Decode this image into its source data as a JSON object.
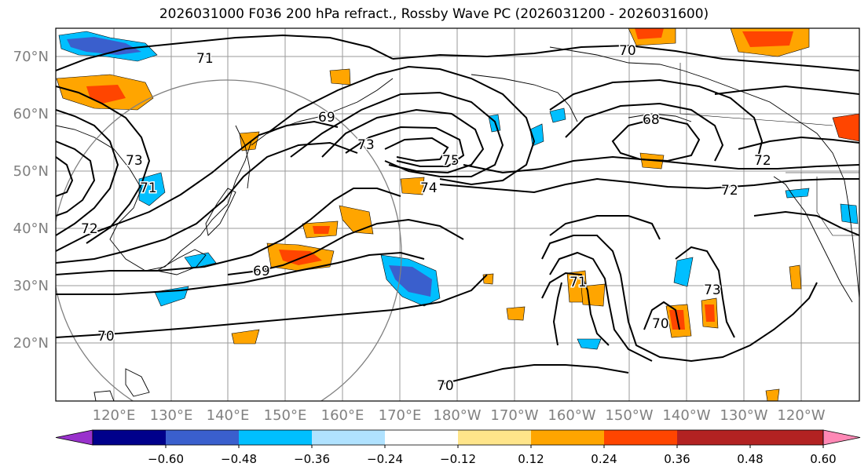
{
  "title": "2026031000 F036 200 hPa refract., Rossby Wave PC (2026031200 - 2026031600)",
  "map": {
    "lat_labels": [
      "70°N",
      "60°N",
      "50°N",
      "40°N",
      "30°N",
      "20°N"
    ],
    "lon_labels": [
      "120°E",
      "130°E",
      "140°E",
      "150°E",
      "160°E",
      "170°E",
      "180°W",
      "170°W",
      "160°W",
      "150°W",
      "140°W",
      "130°W",
      "120°W"
    ],
    "contour_labels": [
      "71",
      "69",
      "73",
      "75",
      "74",
      "70",
      "68",
      "72",
      "72",
      "69",
      "70",
      "71",
      "73",
      "70",
      "70",
      "71",
      "73",
      "72"
    ],
    "label_color": "#808080"
  },
  "colorbar": {
    "ticks": [
      "−0.60",
      "−0.48",
      "−0.36",
      "−0.24",
      "−0.12",
      "0.12",
      "0.24",
      "0.36",
      "0.48",
      "0.60"
    ],
    "colors": [
      "#9932CC",
      "#00008B",
      "#3A5FCD",
      "#00BFFF",
      "#B0E2FF",
      "#FFFFFF",
      "#FFE58A",
      "#FFA500",
      "#FF4500",
      "#B22222",
      "#FF88B5"
    ]
  }
}
